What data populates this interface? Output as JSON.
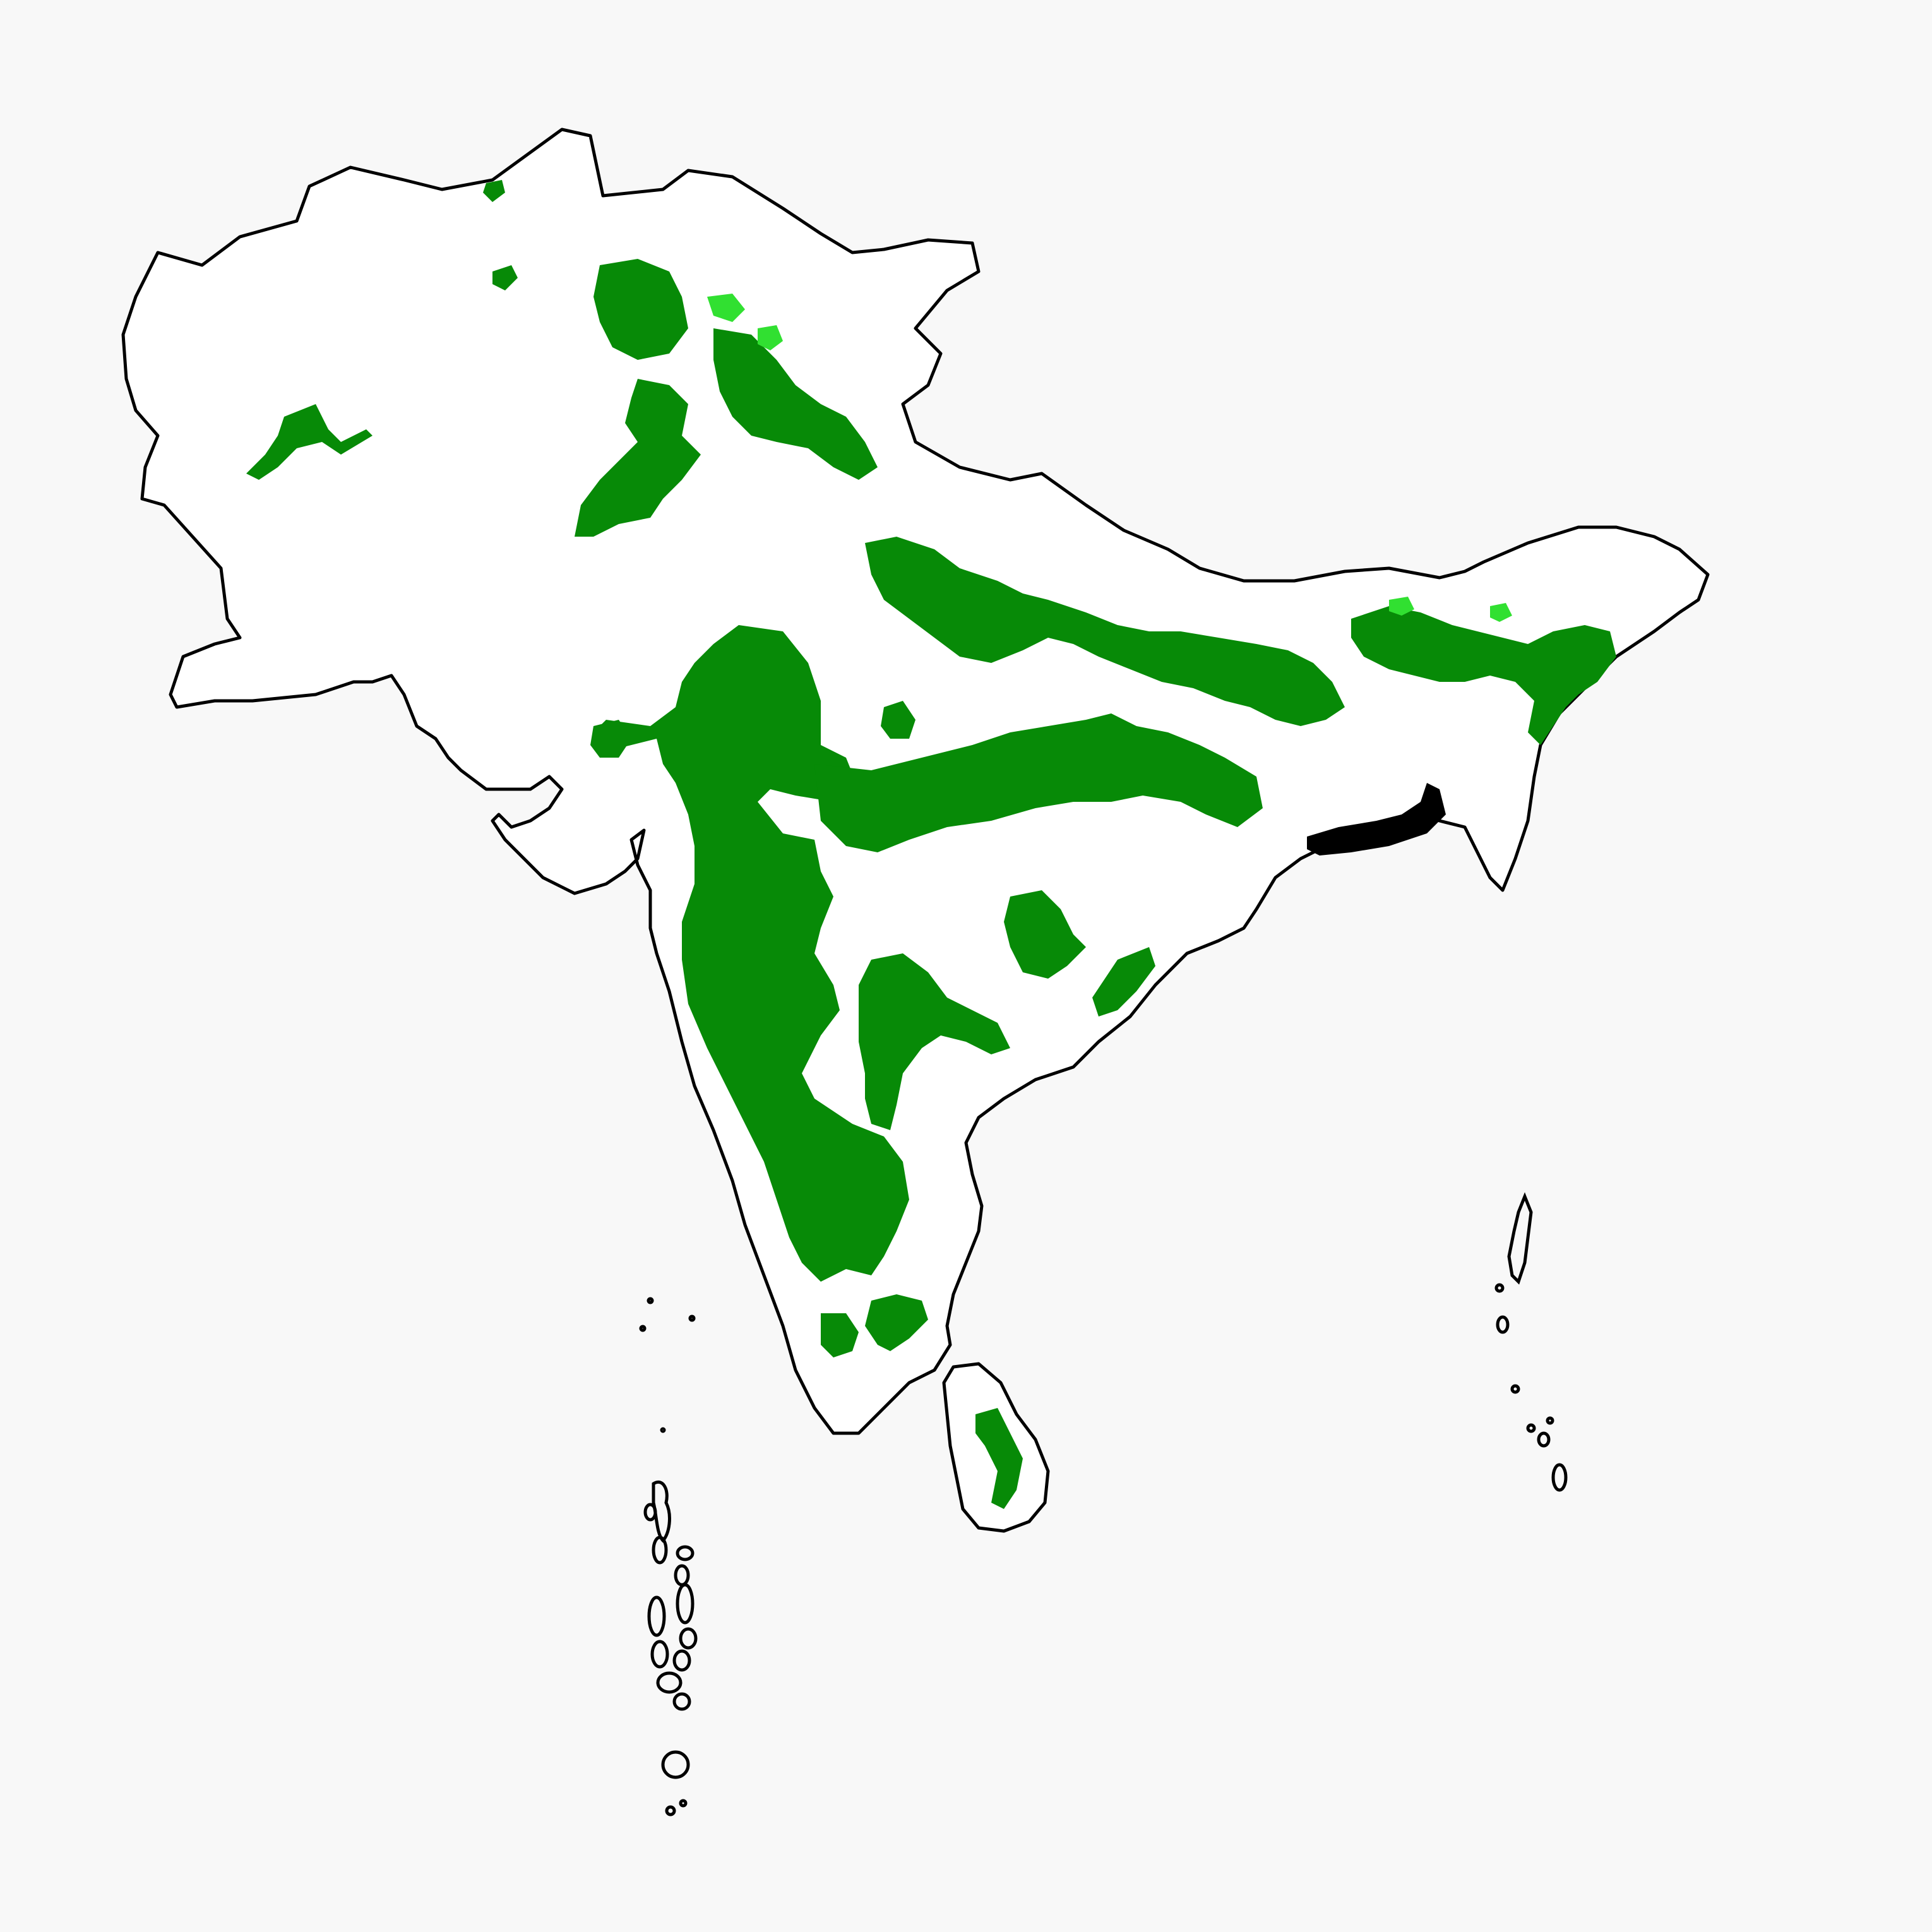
{
  "map": {
    "background_color": "#f8f8f8",
    "land_color": "#ffffff",
    "outline_color": "#000000",
    "forest_color": "#078a07",
    "forest_light_color": "#31e031",
    "has_legend": false,
    "has_title": false
  }
}
